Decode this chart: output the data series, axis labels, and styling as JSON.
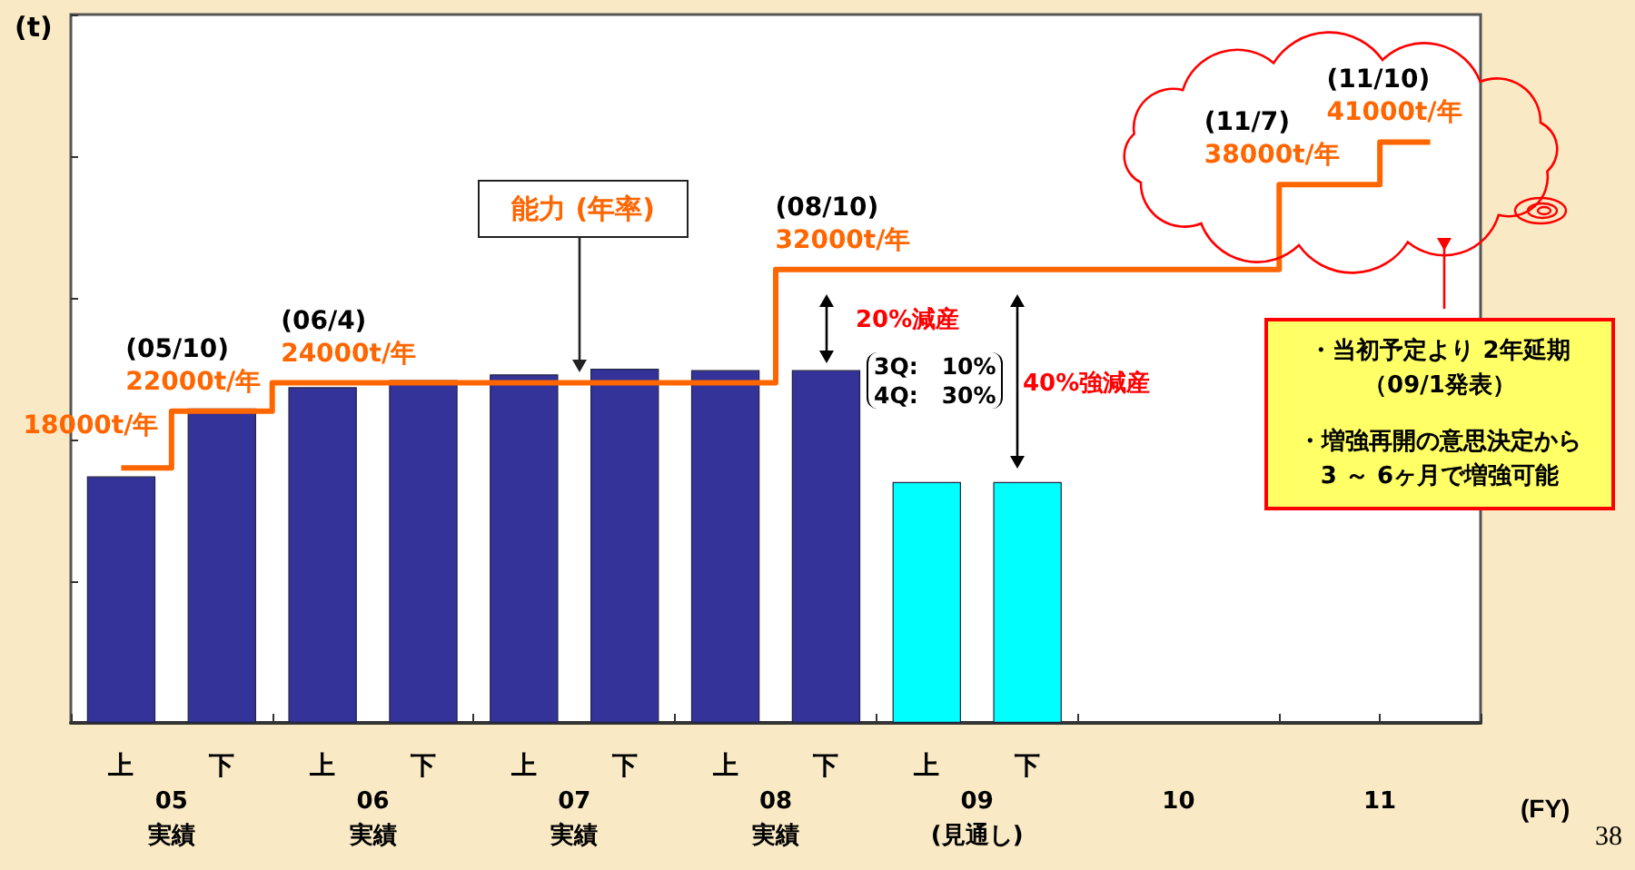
{
  "chart_data": {
    "type": "bar",
    "ylabel": "(t)",
    "xlabel": "(FY)",
    "tick_labels": "x",
    "categories": [
      "上",
      "下",
      "上",
      "下",
      "上",
      "下",
      "上",
      "下",
      "上",
      "下",
      null,
      null,
      null,
      null
    ],
    "ylim": [
      0,
      50000
    ],
    "yticks": [
      {
        "value": 0,
        "label": null
      },
      {
        "value": 10000,
        "label": null
      },
      {
        "value": 20000,
        "label": null
      },
      {
        "value": 30000,
        "label": null
      },
      {
        "value": 40000,
        "label": null
      },
      {
        "value": 50000,
        "label": null
      }
    ],
    "series": [
      {
        "colors": [
          "#333399",
          "#333399",
          "#333399",
          "#333399",
          "#333399",
          "#333399",
          "#333399",
          "#333399",
          "#00ffff",
          "#00ffff",
          "#00ffff",
          "#00ffff",
          "#00ffff",
          "#00ffff"
        ],
        "values": [
          17400,
          22200,
          23700,
          24200,
          24600,
          25000,
          24900,
          24900,
          17000,
          17000,
          null,
          null,
          null,
          null
        ]
      },
      {
        "type": "step",
        "color": "#ff6600",
        "values": [
          18000,
          22000,
          24000,
          24000,
          24000,
          24000,
          24000,
          32000,
          32000,
          32000,
          32000,
          32000,
          38000,
          41000
        ],
        "value_labels": [
          "18000t/年",
          "(05/10)\n22000t/年",
          "(06/4)\n24000t/年",
          null,
          null,
          null,
          null,
          "(08/10)\n32000t/年",
          null,
          null,
          null,
          null,
          "(11/7)\n38000t/年",
          "(11/10)\n41000t/年"
        ]
      }
    ],
    "annotations": [
      "05\n実績",
      "06\n実績",
      "07\n実績",
      "08\n実績",
      "09\n(見通し)",
      "10",
      "11",
      "能力 (年率)",
      "20%減産",
      "3Q:　10%\n4Q:　30%",
      "40%強減産",
      "・当初予定より 2年延期（09/1発表）",
      "・増強再開の意思決定から3 ～ 6ヶ月で増強可能",
      "38"
    ]
  }
}
